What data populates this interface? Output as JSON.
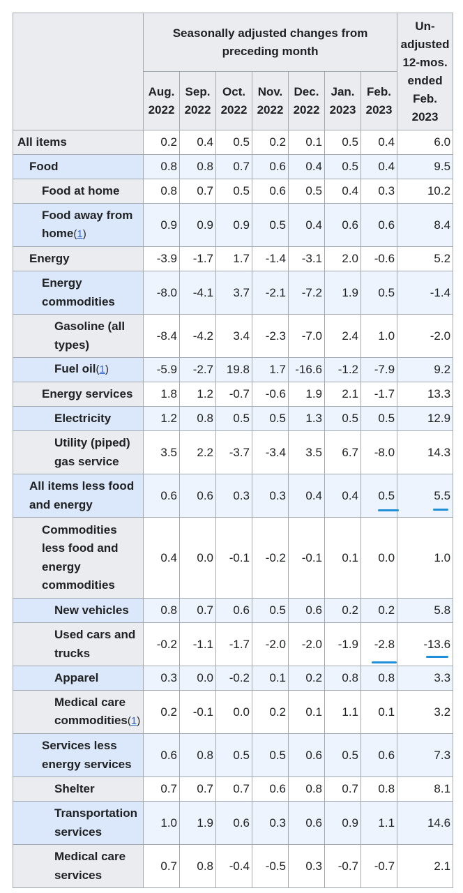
{
  "header": {
    "group_label": "Seasonally adjusted changes from preceding month",
    "unadjusted_label": "Un-adjusted 12-mos. ended Feb. 2023",
    "months": [
      "Aug. 2022",
      "Sep. 2022",
      "Oct. 2022",
      "Nov. 2022",
      "Dec. 2022",
      "Jan. 2023",
      "Feb. 2023"
    ]
  },
  "rows": [
    {
      "label": "All items",
      "ref": "",
      "level": 0,
      "values": [
        "0.2",
        "0.4",
        "0.5",
        "0.2",
        "0.1",
        "0.5",
        "0.4",
        "6.0"
      ]
    },
    {
      "label": "Food",
      "ref": "",
      "level": 1,
      "values": [
        "0.8",
        "0.8",
        "0.7",
        "0.6",
        "0.4",
        "0.5",
        "0.4",
        "9.5"
      ]
    },
    {
      "label": "Food at home",
      "ref": "",
      "level": 2,
      "values": [
        "0.8",
        "0.7",
        "0.5",
        "0.6",
        "0.5",
        "0.4",
        "0.3",
        "10.2"
      ]
    },
    {
      "label": "Food away from home",
      "ref": "1",
      "level": 2,
      "values": [
        "0.9",
        "0.9",
        "0.9",
        "0.5",
        "0.4",
        "0.6",
        "0.6",
        "8.4"
      ]
    },
    {
      "label": "Energy",
      "ref": "",
      "level": 1,
      "values": [
        "-3.9",
        "-1.7",
        "1.7",
        "-1.4",
        "-3.1",
        "2.0",
        "-0.6",
        "5.2"
      ]
    },
    {
      "label": "Energy commodities",
      "ref": "",
      "level": 2,
      "values": [
        "-8.0",
        "-4.1",
        "3.7",
        "-2.1",
        "-7.2",
        "1.9",
        "0.5",
        "-1.4"
      ]
    },
    {
      "label": "Gasoline (all types)",
      "ref": "",
      "level": 3,
      "values": [
        "-8.4",
        "-4.2",
        "3.4",
        "-2.3",
        "-7.0",
        "2.4",
        "1.0",
        "-2.0"
      ]
    },
    {
      "label": "Fuel oil",
      "ref": "1",
      "level": 3,
      "values": [
        "-5.9",
        "-2.7",
        "19.8",
        "1.7",
        "-16.6",
        "-1.2",
        "-7.9",
        "9.2"
      ]
    },
    {
      "label": "Energy services",
      "ref": "",
      "level": 2,
      "values": [
        "1.8",
        "1.2",
        "-0.7",
        "-0.6",
        "1.9",
        "2.1",
        "-1.7",
        "13.3"
      ]
    },
    {
      "label": "Electricity",
      "ref": "",
      "level": 3,
      "values": [
        "1.2",
        "0.8",
        "0.5",
        "0.5",
        "1.3",
        "0.5",
        "0.5",
        "12.9"
      ]
    },
    {
      "label": "Utility (piped) gas service",
      "ref": "",
      "level": 3,
      "values": [
        "3.5",
        "2.2",
        "-3.7",
        "-3.4",
        "3.5",
        "6.7",
        "-8.0",
        "14.3"
      ]
    },
    {
      "label": "All items less food and energy",
      "ref": "",
      "level": 1,
      "values": [
        "0.6",
        "0.6",
        "0.3",
        "0.3",
        "0.4",
        "0.4",
        "0.5",
        "5.5"
      ]
    },
    {
      "label": "Commodities less food and energy commodities",
      "ref": "",
      "level": 2,
      "values": [
        "0.4",
        "0.0",
        "-0.1",
        "-0.2",
        "-0.1",
        "0.1",
        "0.0",
        "1.0"
      ]
    },
    {
      "label": "New vehicles",
      "ref": "",
      "level": 3,
      "values": [
        "0.8",
        "0.7",
        "0.6",
        "0.5",
        "0.6",
        "0.2",
        "0.2",
        "5.8"
      ]
    },
    {
      "label": "Used cars and trucks",
      "ref": "",
      "level": 3,
      "values": [
        "-0.2",
        "-1.1",
        "-1.7",
        "-2.0",
        "-2.0",
        "-1.9",
        "-2.8",
        "-13.6"
      ]
    },
    {
      "label": "Apparel",
      "ref": "",
      "level": 3,
      "values": [
        "0.3",
        "0.0",
        "-0.2",
        "0.1",
        "0.2",
        "0.8",
        "0.8",
        "3.3"
      ]
    },
    {
      "label": "Medical care commodities",
      "ref": "1",
      "level": 3,
      "values": [
        "0.2",
        "-0.1",
        "0.0",
        "0.2",
        "0.1",
        "1.1",
        "0.1",
        "3.2"
      ]
    },
    {
      "label": "Services less energy services",
      "ref": "",
      "level": 2,
      "values": [
        "0.6",
        "0.8",
        "0.5",
        "0.5",
        "0.6",
        "0.5",
        "0.6",
        "7.3"
      ]
    },
    {
      "label": "Shelter",
      "ref": "",
      "level": 3,
      "values": [
        "0.7",
        "0.7",
        "0.7",
        "0.6",
        "0.8",
        "0.7",
        "0.8",
        "8.1"
      ]
    },
    {
      "label": "Transportation services",
      "ref": "",
      "level": 3,
      "values": [
        "1.0",
        "1.9",
        "0.6",
        "0.3",
        "0.6",
        "0.9",
        "1.1",
        "14.6"
      ]
    },
    {
      "label": "Medical care services",
      "ref": "",
      "level": 3,
      "values": [
        "0.7",
        "0.8",
        "-0.4",
        "-0.5",
        "0.3",
        "-0.7",
        "-0.7",
        "2.1"
      ]
    }
  ],
  "annotations": {
    "color": "#1e8fd8"
  }
}
